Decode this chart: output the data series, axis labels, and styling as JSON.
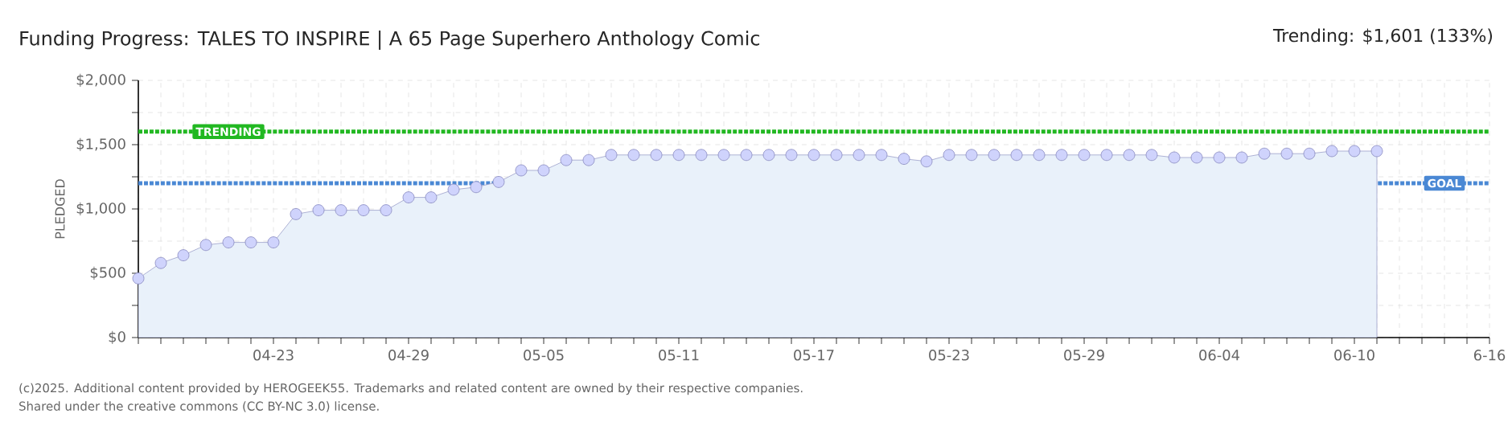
{
  "chart_data": {
    "type": "area",
    "title": "Funding Progress: TALES TO INSPIRE | A 65 Page Superhero Anthology Comic",
    "ylabel": "PLEDGED",
    "annotations": [
      "Trending: $1,601 (133%)",
      "(c)2025. Additional content provided by HEROGEEK55. Trademarks and related content are owned by their respective companies.",
      "Shared under the creative commons (CC BY-NC 3.0) license."
    ],
    "categories": [
      null,
      null,
      null,
      null,
      null,
      null,
      "04-23",
      null,
      null,
      null,
      null,
      null,
      "04-29",
      null,
      null,
      null,
      null,
      null,
      "05-05",
      null,
      null,
      null,
      null,
      null,
      "05-11",
      null,
      null,
      null,
      null,
      null,
      "05-17",
      null,
      null,
      null,
      null,
      null,
      "05-23",
      null,
      null,
      null,
      null,
      null,
      "05-29",
      null,
      null,
      null,
      null,
      null,
      "06-04",
      null,
      null,
      null,
      null,
      null,
      "06-10",
      null,
      null,
      null,
      null,
      null,
      "6-16"
    ],
    "series": [
      {
        "color": "#e9f1fa",
        "values": [
          460,
          580,
          640,
          720,
          740,
          740,
          740,
          960,
          990,
          990,
          990,
          990,
          1090,
          1090,
          1150,
          1170,
          1210,
          1300,
          1300,
          1380,
          1380,
          1420,
          1420,
          1420,
          1420,
          1420,
          1420,
          1420,
          1420,
          1420,
          1420,
          1420,
          1420,
          1420,
          1390,
          1370,
          1420,
          1420,
          1420,
          1420,
          1420,
          1420,
          1420,
          1420,
          1420,
          1420,
          1400,
          1400,
          1400,
          1400,
          1430,
          1430,
          1430,
          1450,
          1450,
          1450,
          null,
          null,
          null,
          null,
          null
        ]
      }
    ],
    "ylim": [
      0,
      2000
    ],
    "yticks": [
      {
        "value": 0,
        "label": "$0"
      },
      {
        "value": 250,
        "label": null
      },
      {
        "value": 500,
        "label": "$500"
      },
      {
        "value": 750,
        "label": null
      },
      {
        "value": 1000,
        "label": "$1,000"
      },
      {
        "value": 1250,
        "label": null
      },
      {
        "value": 1500,
        "label": "$1,500"
      },
      {
        "value": 1750,
        "label": null
      },
      {
        "value": 2000,
        "label": "$2,000"
      }
    ],
    "ref_lines": [
      {
        "axis": "y",
        "value": 1601,
        "label": "TRENDING",
        "color": "#22b822",
        "line_style": "dotted"
      },
      {
        "axis": "y",
        "value": 1200,
        "label": "GOAL",
        "color": "#4a88d4",
        "line_style": "dotted"
      }
    ],
    "grid": true,
    "marker": "circle"
  }
}
